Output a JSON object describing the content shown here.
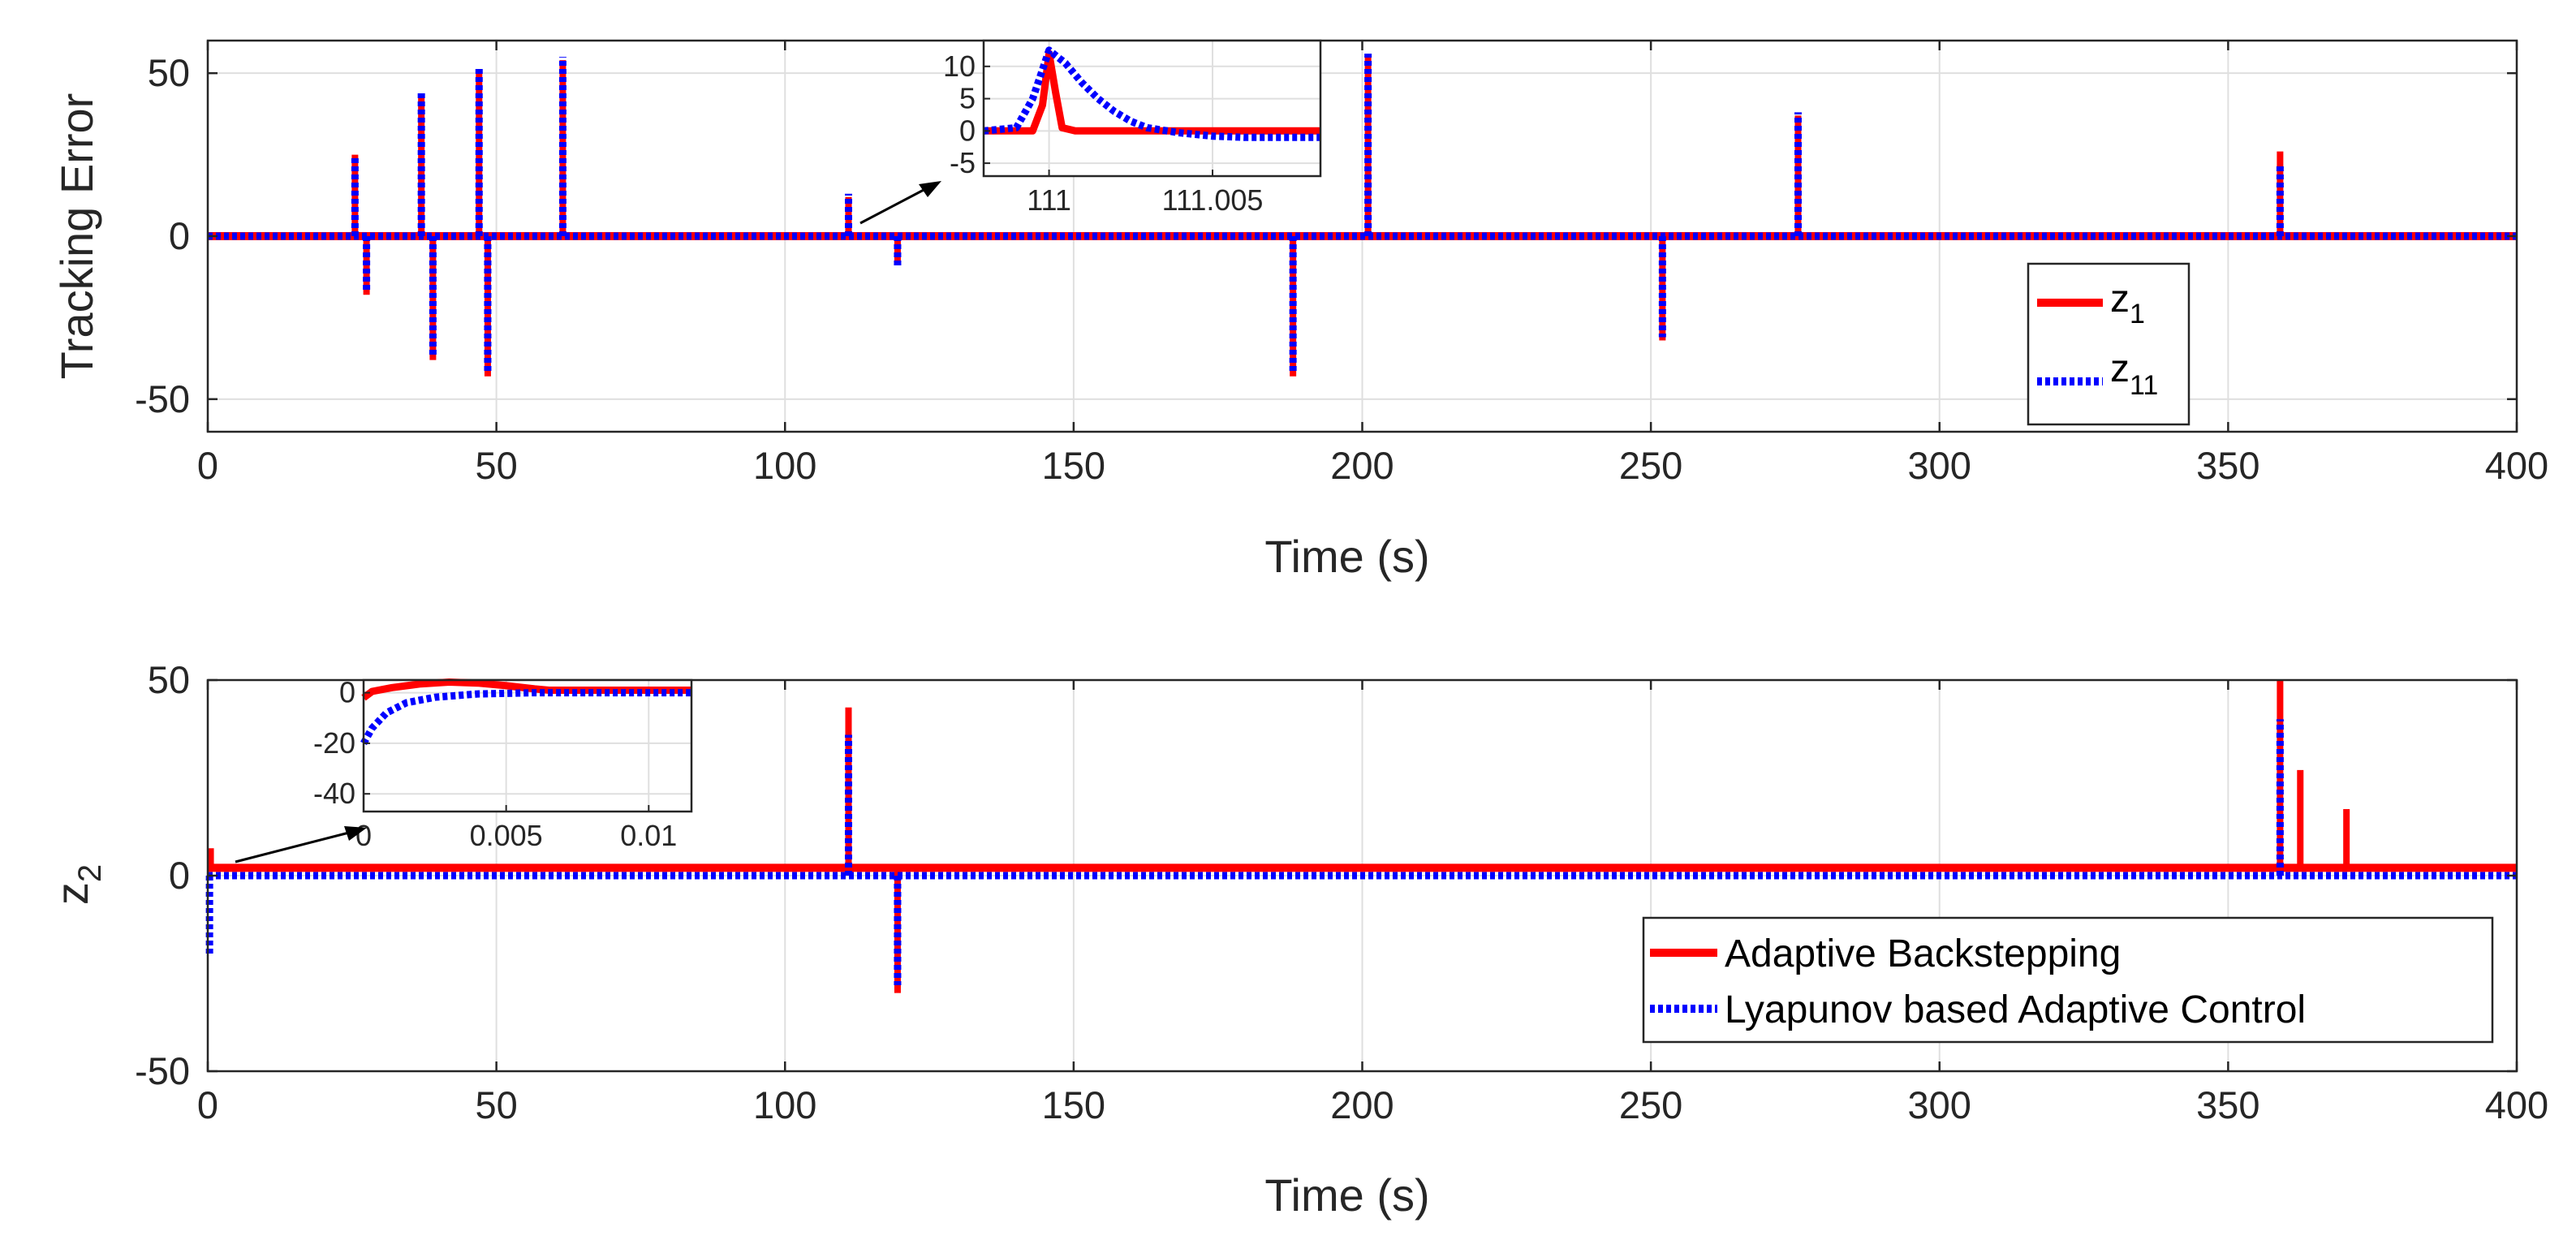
{
  "chart_data": [
    {
      "type": "line",
      "xlabel": "Time (s)",
      "ylabel": "Tracking Error",
      "xlim": [
        0,
        400
      ],
      "ylim": [
        -60,
        60
      ],
      "xticks": [
        0,
        50,
        100,
        150,
        200,
        250,
        300,
        350,
        400
      ],
      "yticks": [
        -50,
        0,
        50
      ],
      "x_tick_labels": [
        "0",
        "50",
        "100",
        "150",
        "200",
        "250",
        "300",
        "350",
        "400"
      ],
      "y_tick_labels": [
        "-50",
        "0",
        "50"
      ],
      "grid": true,
      "legend": {
        "position": "right",
        "entries": [
          {
            "main": "z",
            "sub": "1"
          },
          {
            "main": "z",
            "sub": "11"
          }
        ]
      },
      "series": [
        {
          "name": "z_1",
          "color": "#ff0000",
          "style": "solid",
          "spikes": [
            [
              25.5,
              25
            ],
            [
              27.5,
              -18
            ],
            [
              37,
              43
            ],
            [
              39,
              -38
            ],
            [
              47,
              51
            ],
            [
              48.5,
              -43
            ],
            [
              61.5,
              54
            ],
            [
              111,
              12
            ],
            [
              119.5,
              -8
            ],
            [
              188,
              -43
            ],
            [
              201,
              55
            ],
            [
              252,
              -32
            ],
            [
              275.5,
              37
            ],
            [
              359,
              26
            ]
          ]
        },
        {
          "name": "z_11",
          "color": "#0000ff",
          "style": "dotted",
          "spikes": [
            [
              25.5,
              24
            ],
            [
              27.5,
              -17
            ],
            [
              37,
              44
            ],
            [
              39,
              -37
            ],
            [
              47,
              52
            ],
            [
              48.5,
              -42
            ],
            [
              61.5,
              55
            ],
            [
              111,
              13
            ],
            [
              119.5,
              -9
            ],
            [
              188,
              -42
            ],
            [
              201,
              56
            ],
            [
              252,
              -31
            ],
            [
              275.5,
              38
            ],
            [
              359,
              22
            ]
          ]
        }
      ],
      "inset": {
        "xlim": [
          110.998,
          111.0083
        ],
        "ylim": [
          -7,
          14
        ],
        "xticks": [
          111,
          111.005
        ],
        "yticks": [
          -5,
          0,
          5,
          10
        ],
        "x_tick_labels": [
          "111",
          "111.005"
        ],
        "y_tick_labels": [
          "-5",
          "0",
          "5",
          "10"
        ],
        "points": {
          "z_1": [
            [
              110.998,
              0
            ],
            [
              110.9995,
              0
            ],
            [
              110.9998,
              4
            ],
            [
              111.0,
              12
            ],
            [
              111.0002,
              6
            ],
            [
              111.0004,
              0.5
            ],
            [
              111.0008,
              0
            ],
            [
              111.0083,
              0
            ]
          ],
          "z_11": [
            [
              110.998,
              0
            ],
            [
              110.999,
              0.5
            ],
            [
              110.9995,
              5
            ],
            [
              111.0,
              12.5
            ],
            [
              111.0005,
              10.5
            ],
            [
              111.001,
              7.5
            ],
            [
              111.0015,
              5
            ],
            [
              111.002,
              3
            ],
            [
              111.0025,
              1.5
            ],
            [
              111.003,
              0.5
            ],
            [
              111.004,
              -0.3
            ],
            [
              111.005,
              -0.8
            ],
            [
              111.006,
              -1
            ],
            [
              111.0083,
              -1
            ]
          ]
        }
      }
    },
    {
      "type": "line",
      "xlabel": "Time (s)",
      "ylabel": "z",
      "ylabel_sub": "2",
      "xlim": [
        0,
        400
      ],
      "ylim": [
        -50,
        50
      ],
      "xticks": [
        0,
        50,
        100,
        150,
        200,
        250,
        300,
        350,
        400
      ],
      "yticks": [
        -50,
        0,
        50
      ],
      "x_tick_labels": [
        "0",
        "50",
        "100",
        "150",
        "200",
        "250",
        "300",
        "350",
        "400"
      ],
      "y_tick_labels": [
        "-50",
        "0",
        "50"
      ],
      "grid": true,
      "legend": {
        "position": "bottom-right",
        "entries": [
          {
            "main": "Adaptive Backstepping"
          },
          {
            "main": "Lyapunov based Adaptive Control"
          }
        ]
      },
      "series": [
        {
          "name": "Adaptive Backstepping",
          "color": "#ff0000",
          "style": "solid",
          "baseline": 2,
          "spikes": [
            [
              0.5,
              7
            ],
            [
              111,
              43
            ],
            [
              119.5,
              -30
            ],
            [
              359,
              50
            ],
            [
              362.5,
              27
            ],
            [
              364.5,
              3
            ],
            [
              366.5,
              3
            ],
            [
              370.5,
              17
            ]
          ]
        },
        {
          "name": "Lyapunov based Adaptive Control",
          "color": "#0000ff",
          "style": "dotted",
          "baseline": 0,
          "spikes": [
            [
              0.3,
              -20
            ],
            [
              111,
              36
            ],
            [
              119.5,
              -28
            ],
            [
              359,
              40
            ]
          ]
        }
      ],
      "inset": {
        "xlim": [
          0,
          0.0115
        ],
        "ylim": [
          -47,
          5
        ],
        "xticks": [
          0,
          0.005,
          0.01
        ],
        "yticks": [
          -40,
          -20,
          0
        ],
        "x_tick_labels": [
          "0",
          "0.005",
          "0.01"
        ],
        "y_tick_labels": [
          "-40",
          "-20",
          "0"
        ],
        "points": {
          "Adaptive Backstepping": [
            [
              0,
              -2
            ],
            [
              0.0003,
              0.5
            ],
            [
              0.001,
              2
            ],
            [
              0.002,
              3.5
            ],
            [
              0.003,
              4.2
            ],
            [
              0.004,
              3.8
            ],
            [
              0.005,
              2.8
            ],
            [
              0.006,
              1.5
            ],
            [
              0.0065,
              1
            ],
            [
              0.0115,
              1
            ]
          ],
          "Lyapunov based Adaptive Control": [
            [
              0,
              -20
            ],
            [
              0.0003,
              -14
            ],
            [
              0.0008,
              -8
            ],
            [
              0.0015,
              -4
            ],
            [
              0.0025,
              -1.8
            ],
            [
              0.004,
              -0.5
            ],
            [
              0.006,
              0
            ],
            [
              0.0115,
              0
            ]
          ]
        }
      }
    }
  ]
}
